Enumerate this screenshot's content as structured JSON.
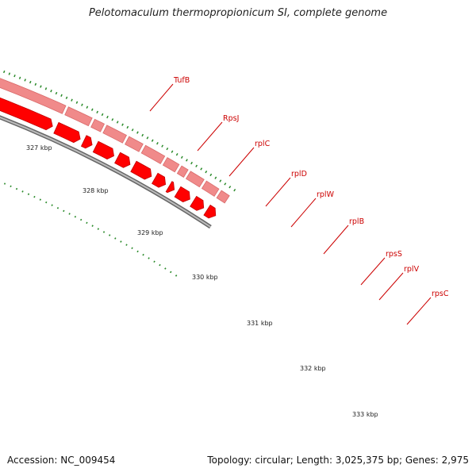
{
  "title": "Pelotomaculum thermopropionicum SI, complete genome",
  "footer": {
    "accession": "Accession: NC_009454",
    "stats": "Topology: circular; Length: 3,025,375 bp; Genes: 2,975"
  },
  "colors": {
    "forward_strand": "#f08a8a",
    "reverse_strand": "#ff0000",
    "backbone": "#888888",
    "ticks": "#2a8a2a",
    "labels": "#cc0000"
  },
  "scale_labels": [
    "327 kbp",
    "328 kbp",
    "329 kbp",
    "330 kbp",
    "331 kbp",
    "332 kbp",
    "333 kbp"
  ],
  "genes": [
    {
      "name": "TufB"
    },
    {
      "name": "RpsJ"
    },
    {
      "name": "rplC"
    },
    {
      "name": "rplD"
    },
    {
      "name": "rplW"
    },
    {
      "name": "rplB"
    },
    {
      "name": "rpsS"
    },
    {
      "name": "rplV"
    },
    {
      "name": "rpsC"
    }
  ]
}
